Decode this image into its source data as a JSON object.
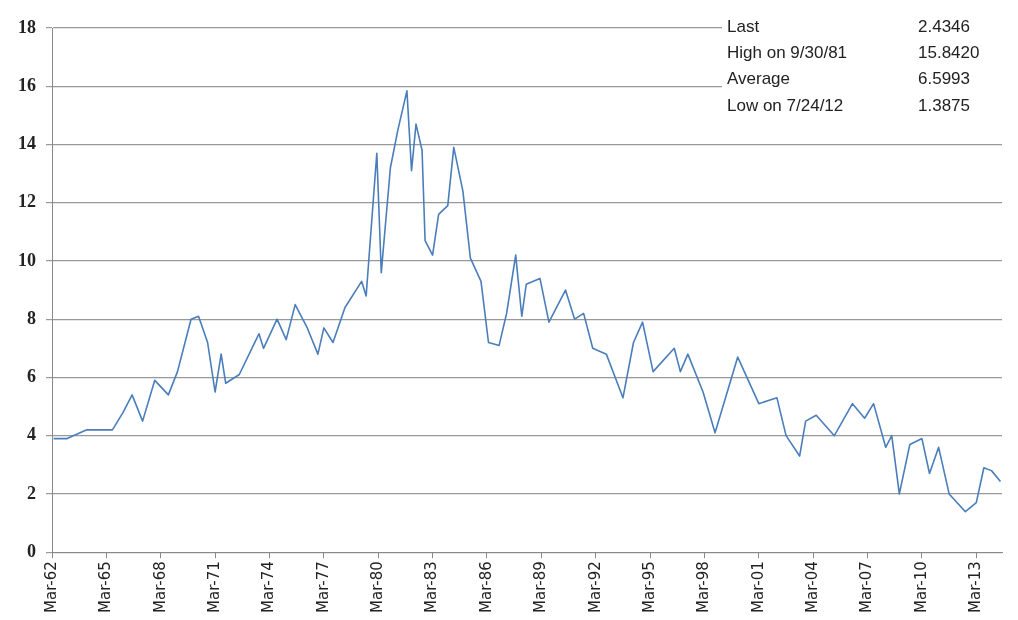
{
  "chart_data": {
    "type": "line",
    "x": [
      "1962-04",
      "1963-01",
      "1964-02",
      "1965-07",
      "1966-02",
      "1966-08",
      "1967-03",
      "1967-11",
      "1968-08",
      "1969-02",
      "1969-11",
      "1970-04",
      "1970-10",
      "1971-03",
      "1971-07",
      "1971-10",
      "1972-07",
      "1973-08",
      "1973-11",
      "1974-08",
      "1975-02",
      "1975-08",
      "1976-04",
      "1976-11",
      "1977-03",
      "1977-09",
      "1978-05",
      "1979-04",
      "1979-07",
      "1979-10",
      "1980-02",
      "1980-05",
      "1980-11",
      "1981-04",
      "1981-09-30",
      "1982-01",
      "1982-04",
      "1982-08",
      "1982-10",
      "1983-03",
      "1983-07",
      "1984-01",
      "1984-05",
      "1984-11",
      "1985-04",
      "1985-11",
      "1986-04",
      "1986-11",
      "1987-04",
      "1987-10",
      "1988-02",
      "1988-05",
      "1989-02",
      "1989-08",
      "1990-07",
      "1991-01",
      "1991-07",
      "1992-01",
      "1992-10",
      "1993-09",
      "1994-04",
      "1994-10",
      "1995-05",
      "1996-07",
      "1996-11",
      "1997-04",
      "1998-02",
      "1998-10",
      "2000-01",
      "2001-03",
      "2002-03",
      "2002-09",
      "2003-06",
      "2003-10",
      "2004-05",
      "2005-05",
      "2006-05",
      "2007-01",
      "2007-07",
      "2008-03",
      "2008-07",
      "2008-12",
      "2009-07",
      "2010-03",
      "2010-08",
      "2011-02",
      "2011-09",
      "2012-07-24",
      "2013-03",
      "2013-08",
      "2014-01",
      "2014-07"
    ],
    "series": [
      {
        "color": "#4a7ebb",
        "values": [
          3.9,
          3.9,
          4.2,
          4.2,
          4.8,
          5.4,
          4.5,
          5.9,
          5.4,
          6.2,
          8.0,
          8.1,
          7.2,
          5.5,
          6.8,
          5.8,
          6.1,
          7.5,
          7.0,
          8.0,
          7.3,
          8.5,
          7.7,
          6.8,
          7.7,
          7.2,
          8.4,
          9.3,
          8.8,
          10.9,
          13.7,
          9.6,
          13.2,
          14.5,
          15.84,
          13.1,
          14.7,
          13.8,
          10.7,
          10.2,
          11.6,
          11.9,
          13.9,
          12.4,
          10.1,
          9.3,
          7.2,
          7.1,
          8.2,
          10.2,
          8.1,
          9.2,
          9.4,
          7.9,
          9.0,
          8.0,
          8.2,
          7.0,
          6.8,
          5.3,
          7.2,
          7.9,
          6.2,
          7.0,
          6.2,
          6.8,
          5.5,
          4.1,
          6.7,
          5.1,
          5.3,
          4.0,
          3.3,
          4.5,
          4.7,
          4.0,
          5.1,
          4.6,
          5.1,
          3.6,
          4.0,
          2.0,
          3.7,
          3.9,
          2.7,
          3.6,
          2.0,
          1.39,
          1.7,
          2.9,
          2.8,
          2.43
        ]
      }
    ],
    "xlim": [
      "1962-03",
      "2014-08"
    ],
    "xticks": [
      {
        "value": "1962-03",
        "label": "Mar-62"
      },
      {
        "value": "1965-03",
        "label": "Mar-65"
      },
      {
        "value": "1968-03",
        "label": "Mar-68"
      },
      {
        "value": "1971-03",
        "label": "Mar-71"
      },
      {
        "value": "1974-03",
        "label": "Mar-74"
      },
      {
        "value": "1977-03",
        "label": "Mar-77"
      },
      {
        "value": "1980-03",
        "label": "Mar-80"
      },
      {
        "value": "1983-03",
        "label": "Mar-83"
      },
      {
        "value": "1986-03",
        "label": "Mar-86"
      },
      {
        "value": "1989-03",
        "label": "Mar-89"
      },
      {
        "value": "1992-03",
        "label": "Mar-92"
      },
      {
        "value": "1995-03",
        "label": "Mar-95"
      },
      {
        "value": "1998-03",
        "label": "Mar-98"
      },
      {
        "value": "2001-03",
        "label": "Mar-01"
      },
      {
        "value": "2004-03",
        "label": "Mar-04"
      },
      {
        "value": "2007-03",
        "label": "Mar-07"
      },
      {
        "value": "2010-03",
        "label": "Mar-10"
      },
      {
        "value": "2013-03",
        "label": "Mar-13"
      }
    ],
    "ylim": [
      0,
      18
    ],
    "yticks": [
      0,
      2,
      4,
      6,
      8,
      10,
      12,
      14,
      16,
      18
    ],
    "grid": "y",
    "legend": false,
    "marker": "none",
    "line_style": "solid",
    "annotations": [
      "Last",
      "2.4346",
      "High on 9/30/81",
      "15.8420",
      "Average",
      "6.5993",
      "Low on 7/24/12",
      "1.3875"
    ]
  }
}
